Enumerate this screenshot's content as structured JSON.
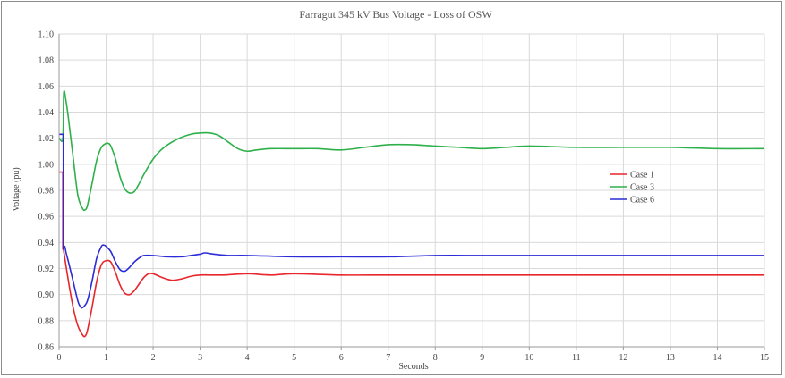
{
  "chart_data": {
    "type": "line",
    "title": "Farragut 345 kV Bus Voltage - Loss of OSW",
    "xlabel": "Seconds",
    "ylabel": "Voltage (pu)",
    "xlim": [
      0,
      15
    ],
    "ylim": [
      0.86,
      1.1
    ],
    "xticks": [
      "0",
      "1",
      "2",
      "3",
      "4",
      "5",
      "6",
      "7",
      "8",
      "9",
      "10",
      "11",
      "12",
      "13",
      "14",
      "15"
    ],
    "yticks": [
      "0.86",
      "0.88",
      "0.90",
      "0.92",
      "0.94",
      "0.96",
      "0.98",
      "1.00",
      "1.02",
      "1.04",
      "1.06",
      "1.08",
      "1.10"
    ],
    "grid": true,
    "legend_position": "right",
    "series": [
      {
        "name": "Case 1",
        "color": "#e8262b",
        "x": [
          0,
          0.08,
          0.08,
          0.1,
          0.2,
          0.3,
          0.4,
          0.5,
          0.55,
          0.6,
          0.7,
          0.8,
          0.9,
          1.0,
          1.1,
          1.2,
          1.3,
          1.4,
          1.5,
          1.6,
          1.7,
          1.8,
          1.9,
          2.0,
          2.2,
          2.4,
          2.6,
          2.8,
          3.0,
          3.5,
          4.0,
          4.5,
          5.0,
          6.0,
          7.0,
          8.0,
          9.0,
          10.0,
          11.0,
          12.0,
          13.0,
          14.0,
          15.0
        ],
        "values": [
          0.994,
          0.994,
          0.935,
          0.933,
          0.91,
          0.89,
          0.876,
          0.869,
          0.868,
          0.872,
          0.89,
          0.91,
          0.923,
          0.926,
          0.925,
          0.917,
          0.907,
          0.901,
          0.9,
          0.903,
          0.908,
          0.913,
          0.916,
          0.916,
          0.913,
          0.911,
          0.912,
          0.914,
          0.915,
          0.915,
          0.916,
          0.915,
          0.916,
          0.915,
          0.915,
          0.915,
          0.915,
          0.915,
          0.915,
          0.915,
          0.915,
          0.915,
          0.915
        ]
      },
      {
        "name": "Case 3",
        "color": "#2eb04a",
        "x": [
          0,
          0.08,
          0.1,
          0.15,
          0.2,
          0.3,
          0.4,
          0.5,
          0.55,
          0.6,
          0.7,
          0.8,
          0.9,
          1.0,
          1.05,
          1.1,
          1.2,
          1.3,
          1.4,
          1.5,
          1.6,
          1.7,
          1.8,
          2.0,
          2.2,
          2.5,
          2.8,
          3.0,
          3.2,
          3.4,
          3.6,
          3.8,
          4.0,
          4.2,
          4.5,
          5.0,
          5.5,
          6.0,
          6.5,
          7.0,
          7.5,
          8.0,
          8.5,
          9.0,
          9.5,
          10.0,
          11.0,
          12.0,
          13.0,
          14.0,
          15.0
        ],
        "values": [
          1.02,
          1.02,
          1.055,
          1.048,
          1.035,
          1.005,
          0.976,
          0.966,
          0.965,
          0.968,
          0.985,
          1.003,
          1.013,
          1.016,
          1.016,
          1.014,
          1.004,
          0.99,
          0.981,
          0.978,
          0.979,
          0.985,
          0.992,
          1.004,
          1.012,
          1.019,
          1.023,
          1.024,
          1.024,
          1.022,
          1.017,
          1.012,
          1.01,
          1.011,
          1.012,
          1.012,
          1.012,
          1.011,
          1.013,
          1.015,
          1.015,
          1.014,
          1.013,
          1.012,
          1.013,
          1.014,
          1.013,
          1.013,
          1.013,
          1.012,
          1.012
        ]
      },
      {
        "name": "Case 6",
        "color": "#2b2bd8",
        "x": [
          0,
          0.09,
          0.09,
          0.12,
          0.15,
          0.2,
          0.3,
          0.4,
          0.45,
          0.5,
          0.6,
          0.7,
          0.8,
          0.9,
          0.95,
          1.0,
          1.1,
          1.2,
          1.3,
          1.4,
          1.5,
          1.6,
          1.7,
          1.8,
          2.0,
          2.3,
          2.6,
          2.8,
          3.0,
          3.1,
          3.3,
          3.6,
          4.0,
          5.0,
          6.0,
          7.0,
          8.0,
          9.0,
          10.0,
          11.0,
          12.0,
          13.0,
          14.0,
          15.0
        ],
        "values": [
          1.023,
          1.023,
          0.935,
          0.937,
          0.932,
          0.925,
          0.91,
          0.895,
          0.891,
          0.89,
          0.895,
          0.91,
          0.928,
          0.937,
          0.938,
          0.937,
          0.933,
          0.925,
          0.919,
          0.918,
          0.921,
          0.925,
          0.928,
          0.93,
          0.93,
          0.929,
          0.929,
          0.93,
          0.931,
          0.932,
          0.931,
          0.93,
          0.93,
          0.929,
          0.929,
          0.929,
          0.93,
          0.93,
          0.93,
          0.93,
          0.93,
          0.93,
          0.93,
          0.93
        ]
      }
    ]
  }
}
